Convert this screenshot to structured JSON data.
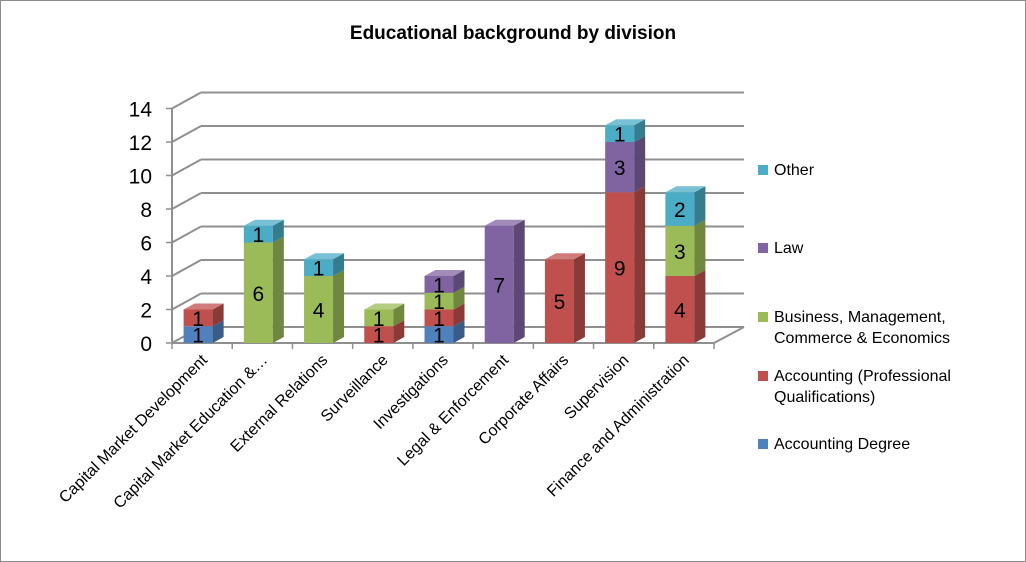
{
  "chart_data": {
    "type": "bar",
    "stacked": true,
    "three_d": true,
    "title": "Educational background by division",
    "xlabel": "",
    "ylabel": "",
    "ylim": [
      0,
      14
    ],
    "yticks": [
      "0",
      "2",
      "4",
      "6",
      "8",
      "10",
      "12",
      "14"
    ],
    "grid": true,
    "legend_position": "right",
    "categories": [
      "Capital Market Development",
      "Capital Market Education &…",
      "External Relations",
      "Surveillance",
      "Investigations",
      "Legal & Enforcement",
      "Corporate Affairs",
      "Supervision",
      "Finance and Administration"
    ],
    "series": [
      {
        "name": "Accounting Degree",
        "color": "#4f81bd",
        "values": [
          1,
          0,
          0,
          0,
          1,
          0,
          0,
          0,
          0
        ]
      },
      {
        "name": "Accounting (Professional Qualifications)",
        "color": "#c0504d",
        "values": [
          1,
          0,
          0,
          1,
          1,
          0,
          5,
          9,
          4
        ]
      },
      {
        "name": "Business, Management, Commerce & Economics",
        "color": "#9bbb59",
        "values": [
          0,
          6,
          4,
          1,
          1,
          0,
          0,
          0,
          3
        ]
      },
      {
        "name": "Law",
        "color": "#8064a2",
        "values": [
          0,
          0,
          0,
          0,
          1,
          7,
          0,
          3,
          0
        ]
      },
      {
        "name": "Other",
        "color": "#4bacc6",
        "values": [
          0,
          1,
          1,
          0,
          0,
          0,
          0,
          1,
          2
        ]
      }
    ],
    "legend_lines": [
      [
        "Other"
      ],
      [
        "Law"
      ],
      [
        "Business, Management,",
        "Commerce & Economics"
      ],
      [
        "Accounting (Professional",
        "Qualifications)"
      ],
      [
        "Accounting Degree"
      ]
    ]
  }
}
